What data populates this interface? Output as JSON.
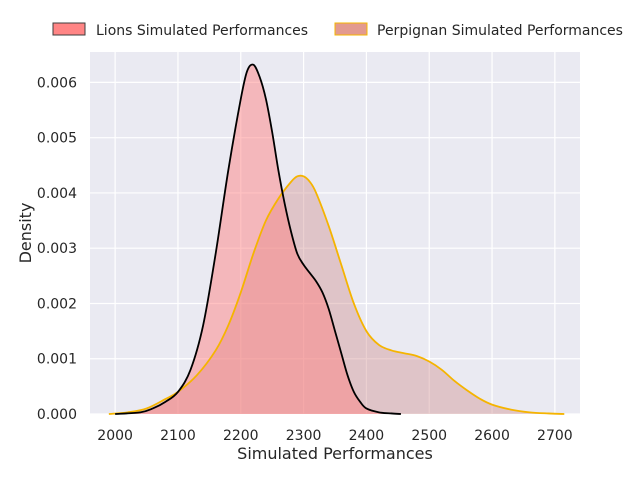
{
  "chart_data": {
    "type": "area",
    "xlabel": "Simulated Performances",
    "ylabel": "Density",
    "xlim": [
      1960,
      2740
    ],
    "ylim": [
      0,
      0.00655
    ],
    "xticks": [
      2000,
      2100,
      2200,
      2300,
      2400,
      2500,
      2600,
      2700
    ],
    "xtick_labels": [
      "2000",
      "2100",
      "2200",
      "2300",
      "2400",
      "2500",
      "2600",
      "2700"
    ],
    "yticks": [
      0,
      0.001,
      0.002,
      0.003,
      0.004,
      0.005,
      0.006
    ],
    "ytick_labels": [
      "0.000",
      "0.001",
      "0.002",
      "0.003",
      "0.004",
      "0.005",
      "0.006"
    ],
    "grid": true,
    "legend_position": "top",
    "colors": {
      "background": "#eaeaf2",
      "grid": "#ffffff",
      "lions_fill": "#ff7f7f",
      "lions_line": "#000000",
      "perpignan_fill": "#d08f8f",
      "perpignan_line": "#f5b400"
    },
    "series": [
      {
        "name": "Perpignan Simulated Performances",
        "x": [
          1990,
          2020,
          2050,
          2080,
          2100,
          2130,
          2160,
          2180,
          2200,
          2220,
          2240,
          2260,
          2280,
          2290,
          2300,
          2310,
          2320,
          2340,
          2360,
          2380,
          2400,
          2420,
          2440,
          2460,
          2480,
          2500,
          2520,
          2540,
          2560,
          2580,
          2600,
          2630,
          2660,
          2690,
          2715
        ],
        "y": [
          0.0,
          3e-05,
          0.0001,
          0.00027,
          0.0004,
          0.0007,
          0.00115,
          0.0016,
          0.0022,
          0.0029,
          0.0035,
          0.0039,
          0.0042,
          0.0043,
          0.0043,
          0.0042,
          0.004,
          0.0034,
          0.0027,
          0.002,
          0.0015,
          0.00125,
          0.00115,
          0.0011,
          0.00105,
          0.00095,
          0.0008,
          0.0006,
          0.00043,
          0.00028,
          0.00017,
          8e-05,
          3e-05,
          1e-05,
          0.0
        ]
      },
      {
        "name": "Lions Simulated Performances",
        "x": [
          2000,
          2040,
          2060,
          2080,
          2100,
          2120,
          2140,
          2160,
          2180,
          2200,
          2210,
          2220,
          2230,
          2240,
          2250,
          2260,
          2270,
          2280,
          2290,
          2300,
          2310,
          2320,
          2330,
          2340,
          2350,
          2360,
          2370,
          2380,
          2390,
          2400,
          2420,
          2440,
          2455
        ],
        "y": [
          0.0,
          3e-05,
          0.0001,
          0.00022,
          0.0004,
          0.0008,
          0.0016,
          0.0029,
          0.0044,
          0.0057,
          0.0062,
          0.00632,
          0.0061,
          0.0057,
          0.0051,
          0.0044,
          0.0038,
          0.0033,
          0.0029,
          0.0027,
          0.00255,
          0.0024,
          0.0022,
          0.0019,
          0.0015,
          0.0011,
          0.0007,
          0.0004,
          0.00022,
          0.0001,
          3e-05,
          1e-05,
          0.0
        ]
      }
    ]
  }
}
